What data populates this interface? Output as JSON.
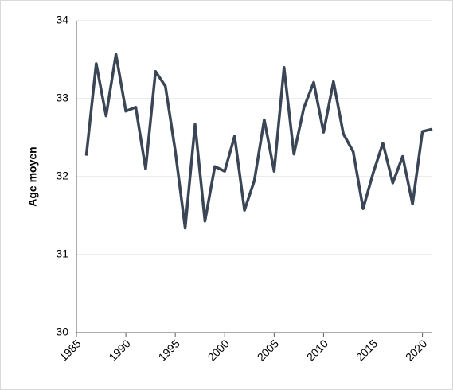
{
  "chart_data": {
    "type": "line",
    "ylabel": "Age moyen",
    "x": [
      1986,
      1987,
      1988,
      1989,
      1990,
      1991,
      1992,
      1993,
      1994,
      1995,
      1996,
      1997,
      1998,
      1999,
      2000,
      2001,
      2002,
      2003,
      2004,
      2005,
      2006,
      2007,
      2008,
      2009,
      2010,
      2011,
      2012,
      2013,
      2014,
      2015,
      2016,
      2017,
      2018,
      2019,
      2020,
      2021
    ],
    "series": [
      {
        "color": "#3a4556",
        "values": [
          32.27,
          33.45,
          32.78,
          33.57,
          32.84,
          32.89,
          32.1,
          33.35,
          33.16,
          32.33,
          31.34,
          32.67,
          31.43,
          32.13,
          32.07,
          32.52,
          31.57,
          31.95,
          32.73,
          32.07,
          33.4,
          32.29,
          32.88,
          33.21,
          32.57,
          33.22,
          32.55,
          32.32,
          31.59,
          32.04,
          32.43,
          31.92,
          32.26,
          31.65,
          32.58,
          32.61
        ]
      }
    ],
    "xlim": [
      1985,
      2021
    ],
    "xticks": [
      1985,
      1990,
      1995,
      2000,
      2005,
      2010,
      2015,
      2020
    ],
    "ylim": [
      30,
      34
    ],
    "yticks": [
      30,
      31,
      32,
      33,
      34
    ],
    "grid": true
  }
}
